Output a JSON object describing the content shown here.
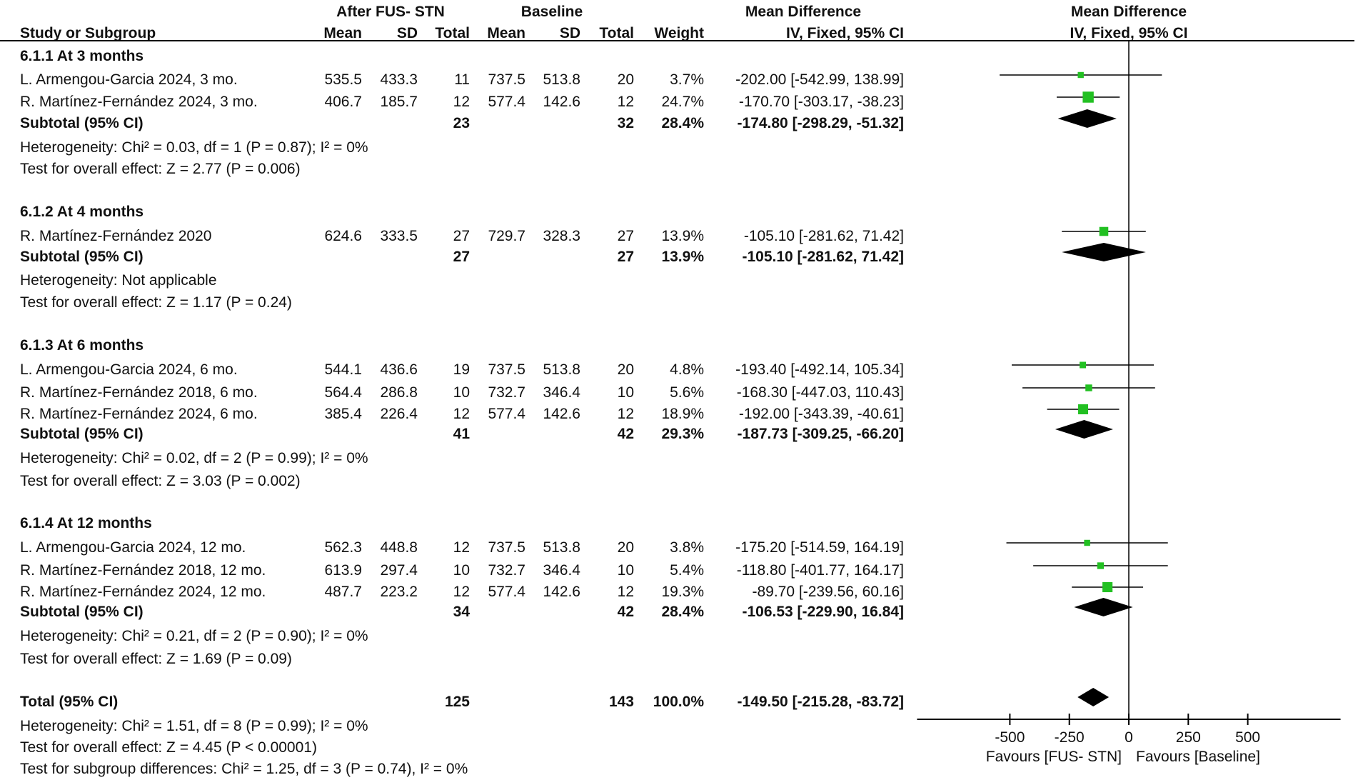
{
  "chart_data": {
    "type": "forest",
    "header": {
      "group1": "After FUS- STN",
      "group2": "Baseline",
      "effect": "Mean Difference",
      "plot_title": "Mean Difference",
      "study_col": "Study or Subgroup",
      "mean": "Mean",
      "sd": "SD",
      "total": "Total",
      "weight": "Weight",
      "method": "IV, Fixed, 95% CI",
      "plot_method": "IV, Fixed, 95% CI"
    },
    "colors": {
      "square": "#22c022",
      "diamond": "#000000",
      "line": "#000000"
    },
    "xlim": [
      -890,
      890
    ],
    "ticks": [
      "-500",
      "-250",
      "0",
      "250",
      "500"
    ],
    "tick_values": [
      -500,
      -250,
      0,
      250,
      500
    ],
    "favours_left": "Favours [FUS- STN]",
    "favours_right": "Favours [Baseline]",
    "groups": [
      {
        "title": "6.1.1 At 3 months",
        "studies": [
          {
            "name": "L. Armengou-Garcia 2024, 3 mo.",
            "m1": "535.5",
            "sd1": "433.3",
            "n1": "11",
            "m2": "737.5",
            "sd2": "513.8",
            "n2": "20",
            "weight": "3.7%",
            "ci": "-202.00 [-542.99, 138.99]",
            "md": -202.0,
            "lo": -542.99,
            "hi": 138.99,
            "w": 3.7
          },
          {
            "name": "R. Martínez-Fernández 2024, 3 mo.",
            "m1": "406.7",
            "sd1": "185.7",
            "n1": "12",
            "m2": "577.4",
            "sd2": "142.6",
            "n2": "12",
            "weight": "24.7%",
            "ci": "-170.70 [-303.17, -38.23]",
            "md": -170.7,
            "lo": -303.17,
            "hi": -38.23,
            "w": 24.7
          }
        ],
        "subtotal": {
          "label": "Subtotal (95% CI)",
          "n1": "23",
          "n2": "32",
          "weight": "28.4%",
          "ci": "-174.80 [-298.29, -51.32]",
          "md": -174.8,
          "lo": -298.29,
          "hi": -51.32
        },
        "heterogeneity": "Heterogeneity: Chi² = 0.03, df = 1 (P = 0.87); I² = 0%",
        "overall": "Test for overall effect: Z = 2.77 (P = 0.006)"
      },
      {
        "title": "6.1.2 At 4 months",
        "studies": [
          {
            "name": "R. Martínez-Fernández 2020",
            "m1": "624.6",
            "sd1": "333.5",
            "n1": "27",
            "m2": "729.7",
            "sd2": "328.3",
            "n2": "27",
            "weight": "13.9%",
            "ci": "-105.10 [-281.62, 71.42]",
            "md": -105.1,
            "lo": -281.62,
            "hi": 71.42,
            "w": 13.9
          }
        ],
        "subtotal": {
          "label": "Subtotal (95% CI)",
          "n1": "27",
          "n2": "27",
          "weight": "13.9%",
          "ci": "-105.10 [-281.62, 71.42]",
          "md": -105.1,
          "lo": -281.62,
          "hi": 71.42
        },
        "heterogeneity": "Heterogeneity: Not applicable",
        "overall": "Test for overall effect: Z = 1.17 (P = 0.24)"
      },
      {
        "title": "6.1.3 At 6 months",
        "studies": [
          {
            "name": "L. Armengou-Garcia 2024, 6 mo.",
            "m1": "544.1",
            "sd1": "436.6",
            "n1": "19",
            "m2": "737.5",
            "sd2": "513.8",
            "n2": "20",
            "weight": "4.8%",
            "ci": "-193.40 [-492.14, 105.34]",
            "md": -193.4,
            "lo": -492.14,
            "hi": 105.34,
            "w": 4.8
          },
          {
            "name": "R. Martínez-Fernández 2018, 6 mo.",
            "m1": "564.4",
            "sd1": "286.8",
            "n1": "10",
            "m2": "732.7",
            "sd2": "346.4",
            "n2": "10",
            "weight": "5.6%",
            "ci": "-168.30 [-447.03, 110.43]",
            "md": -168.3,
            "lo": -447.03,
            "hi": 110.43,
            "w": 5.6
          },
          {
            "name": "R. Martínez-Fernández 2024, 6 mo.",
            "m1": "385.4",
            "sd1": "226.4",
            "n1": "12",
            "m2": "577.4",
            "sd2": "142.6",
            "n2": "12",
            "weight": "18.9%",
            "ci": "-192.00 [-343.39, -40.61]",
            "md": -192.0,
            "lo": -343.39,
            "hi": -40.61,
            "w": 18.9
          }
        ],
        "subtotal": {
          "label": "Subtotal (95% CI)",
          "n1": "41",
          "n2": "42",
          "weight": "29.3%",
          "ci": "-187.73 [-309.25, -66.20]",
          "md": -187.73,
          "lo": -309.25,
          "hi": -66.2
        },
        "heterogeneity": "Heterogeneity: Chi² = 0.02, df = 2 (P = 0.99); I² = 0%",
        "overall": "Test for overall effect: Z = 3.03 (P = 0.002)"
      },
      {
        "title": "6.1.4 At 12 months",
        "studies": [
          {
            "name": "L. Armengou-Garcia 2024, 12 mo.",
            "m1": "562.3",
            "sd1": "448.8",
            "n1": "12",
            "m2": "737.5",
            "sd2": "513.8",
            "n2": "20",
            "weight": "3.8%",
            "ci": "-175.20 [-514.59, 164.19]",
            "md": -175.2,
            "lo": -514.59,
            "hi": 164.19,
            "w": 3.8
          },
          {
            "name": "R. Martínez-Fernández 2018, 12 mo.",
            "m1": "613.9",
            "sd1": "297.4",
            "n1": "10",
            "m2": "732.7",
            "sd2": "346.4",
            "n2": "10",
            "weight": "5.4%",
            "ci": "-118.80 [-401.77, 164.17]",
            "md": -118.8,
            "lo": -401.77,
            "hi": 164.17,
            "w": 5.4
          },
          {
            "name": "R. Martínez-Fernández 2024, 12 mo.",
            "m1": "487.7",
            "sd1": "223.2",
            "n1": "12",
            "m2": "577.4",
            "sd2": "142.6",
            "n2": "12",
            "weight": "19.3%",
            "ci": "-89.70 [-239.56, 60.16]",
            "md": -89.7,
            "lo": -239.56,
            "hi": 60.16,
            "w": 19.3
          }
        ],
        "subtotal": {
          "label": "Subtotal (95% CI)",
          "n1": "34",
          "n2": "42",
          "weight": "28.4%",
          "ci": "-106.53 [-229.90, 16.84]",
          "md": -106.53,
          "lo": -229.9,
          "hi": 16.84
        },
        "heterogeneity": "Heterogeneity: Chi² = 0.21, df = 2 (P = 0.90); I² = 0%",
        "overall": "Test for overall effect: Z = 1.69 (P = 0.09)"
      }
    ],
    "total": {
      "label": "Total (95% CI)",
      "n1": "125",
      "n2": "143",
      "weight": "100.0%",
      "ci": "-149.50 [-215.28, -83.72]",
      "md": -149.5,
      "lo": -215.28,
      "hi": -83.72
    },
    "total_heterogeneity": "Heterogeneity: Chi² = 1.51, df = 8 (P = 0.99); I² = 0%",
    "total_overall": "Test for overall effect: Z = 4.45 (P < 0.00001)",
    "subgroup_differences": "Test for subgroup differences: Chi² = 1.25, df = 3 (P = 0.74), I² = 0%"
  }
}
